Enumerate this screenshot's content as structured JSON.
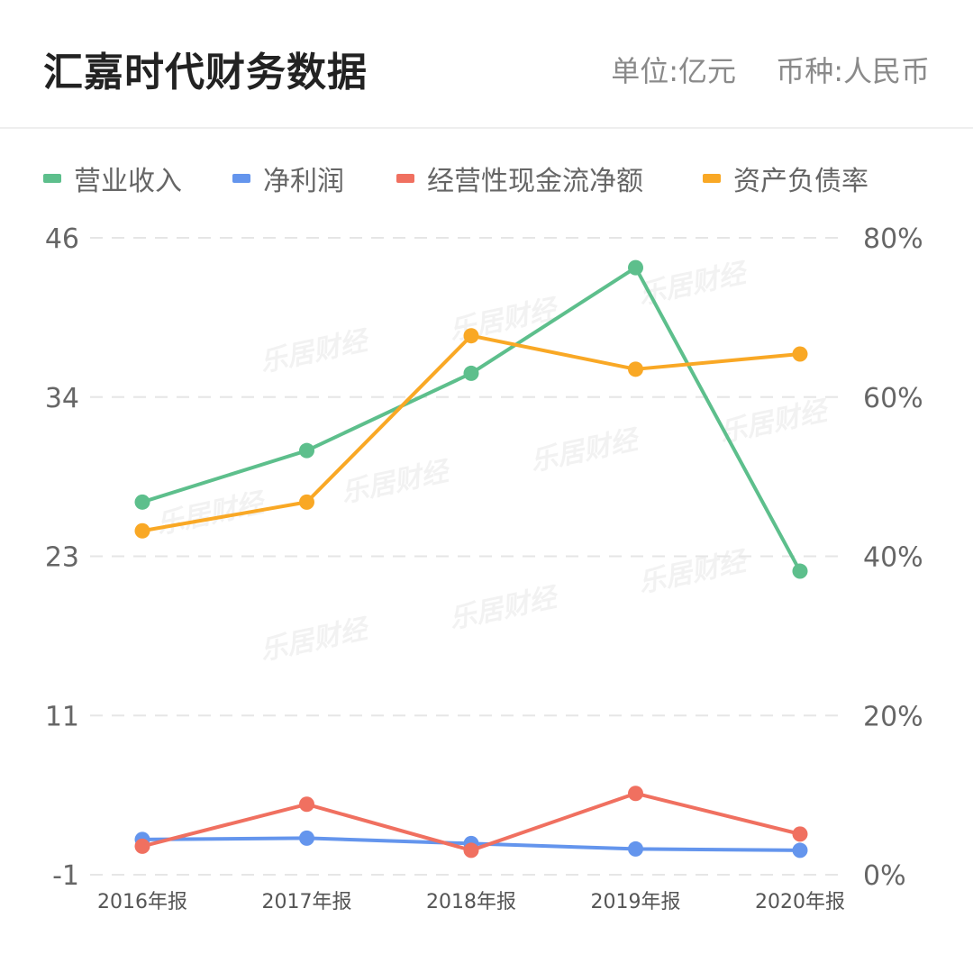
{
  "header": {
    "title": "汇嘉时代财务数据",
    "unit_label": "单位:亿元",
    "currency_label": "币种:人民币"
  },
  "watermark": "乐居财经",
  "chart_data": {
    "type": "line",
    "categories": [
      "2016年报",
      "2017年报",
      "2018年报",
      "2019年报",
      "2020年报"
    ],
    "left_axis": {
      "min": -1,
      "max": 46,
      "ticks": [
        "46",
        "34",
        "23",
        "11",
        "-1"
      ]
    },
    "right_axis": {
      "min": 0,
      "max": 80,
      "ticks": [
        "80%",
        "60%",
        "40%",
        "20%",
        "0%"
      ]
    },
    "grid": true,
    "legend_position": "top",
    "series": [
      {
        "name": "营业收入",
        "axis": "left",
        "color": "#5dbf8c",
        "values": [
          26.5,
          30.3,
          36.0,
          43.8,
          21.4
        ]
      },
      {
        "name": "净利润",
        "axis": "left",
        "color": "#6495ed",
        "values": [
          1.6,
          1.7,
          1.3,
          0.9,
          0.8
        ]
      },
      {
        "name": "经营性现金流净额",
        "axis": "left",
        "color": "#f07060",
        "values": [
          1.1,
          4.2,
          0.8,
          5.0,
          2.0
        ]
      },
      {
        "name": "资产负债率",
        "axis": "right",
        "color": "#f9a825",
        "values": [
          43.2,
          46.8,
          67.7,
          63.5,
          65.4
        ]
      }
    ]
  }
}
